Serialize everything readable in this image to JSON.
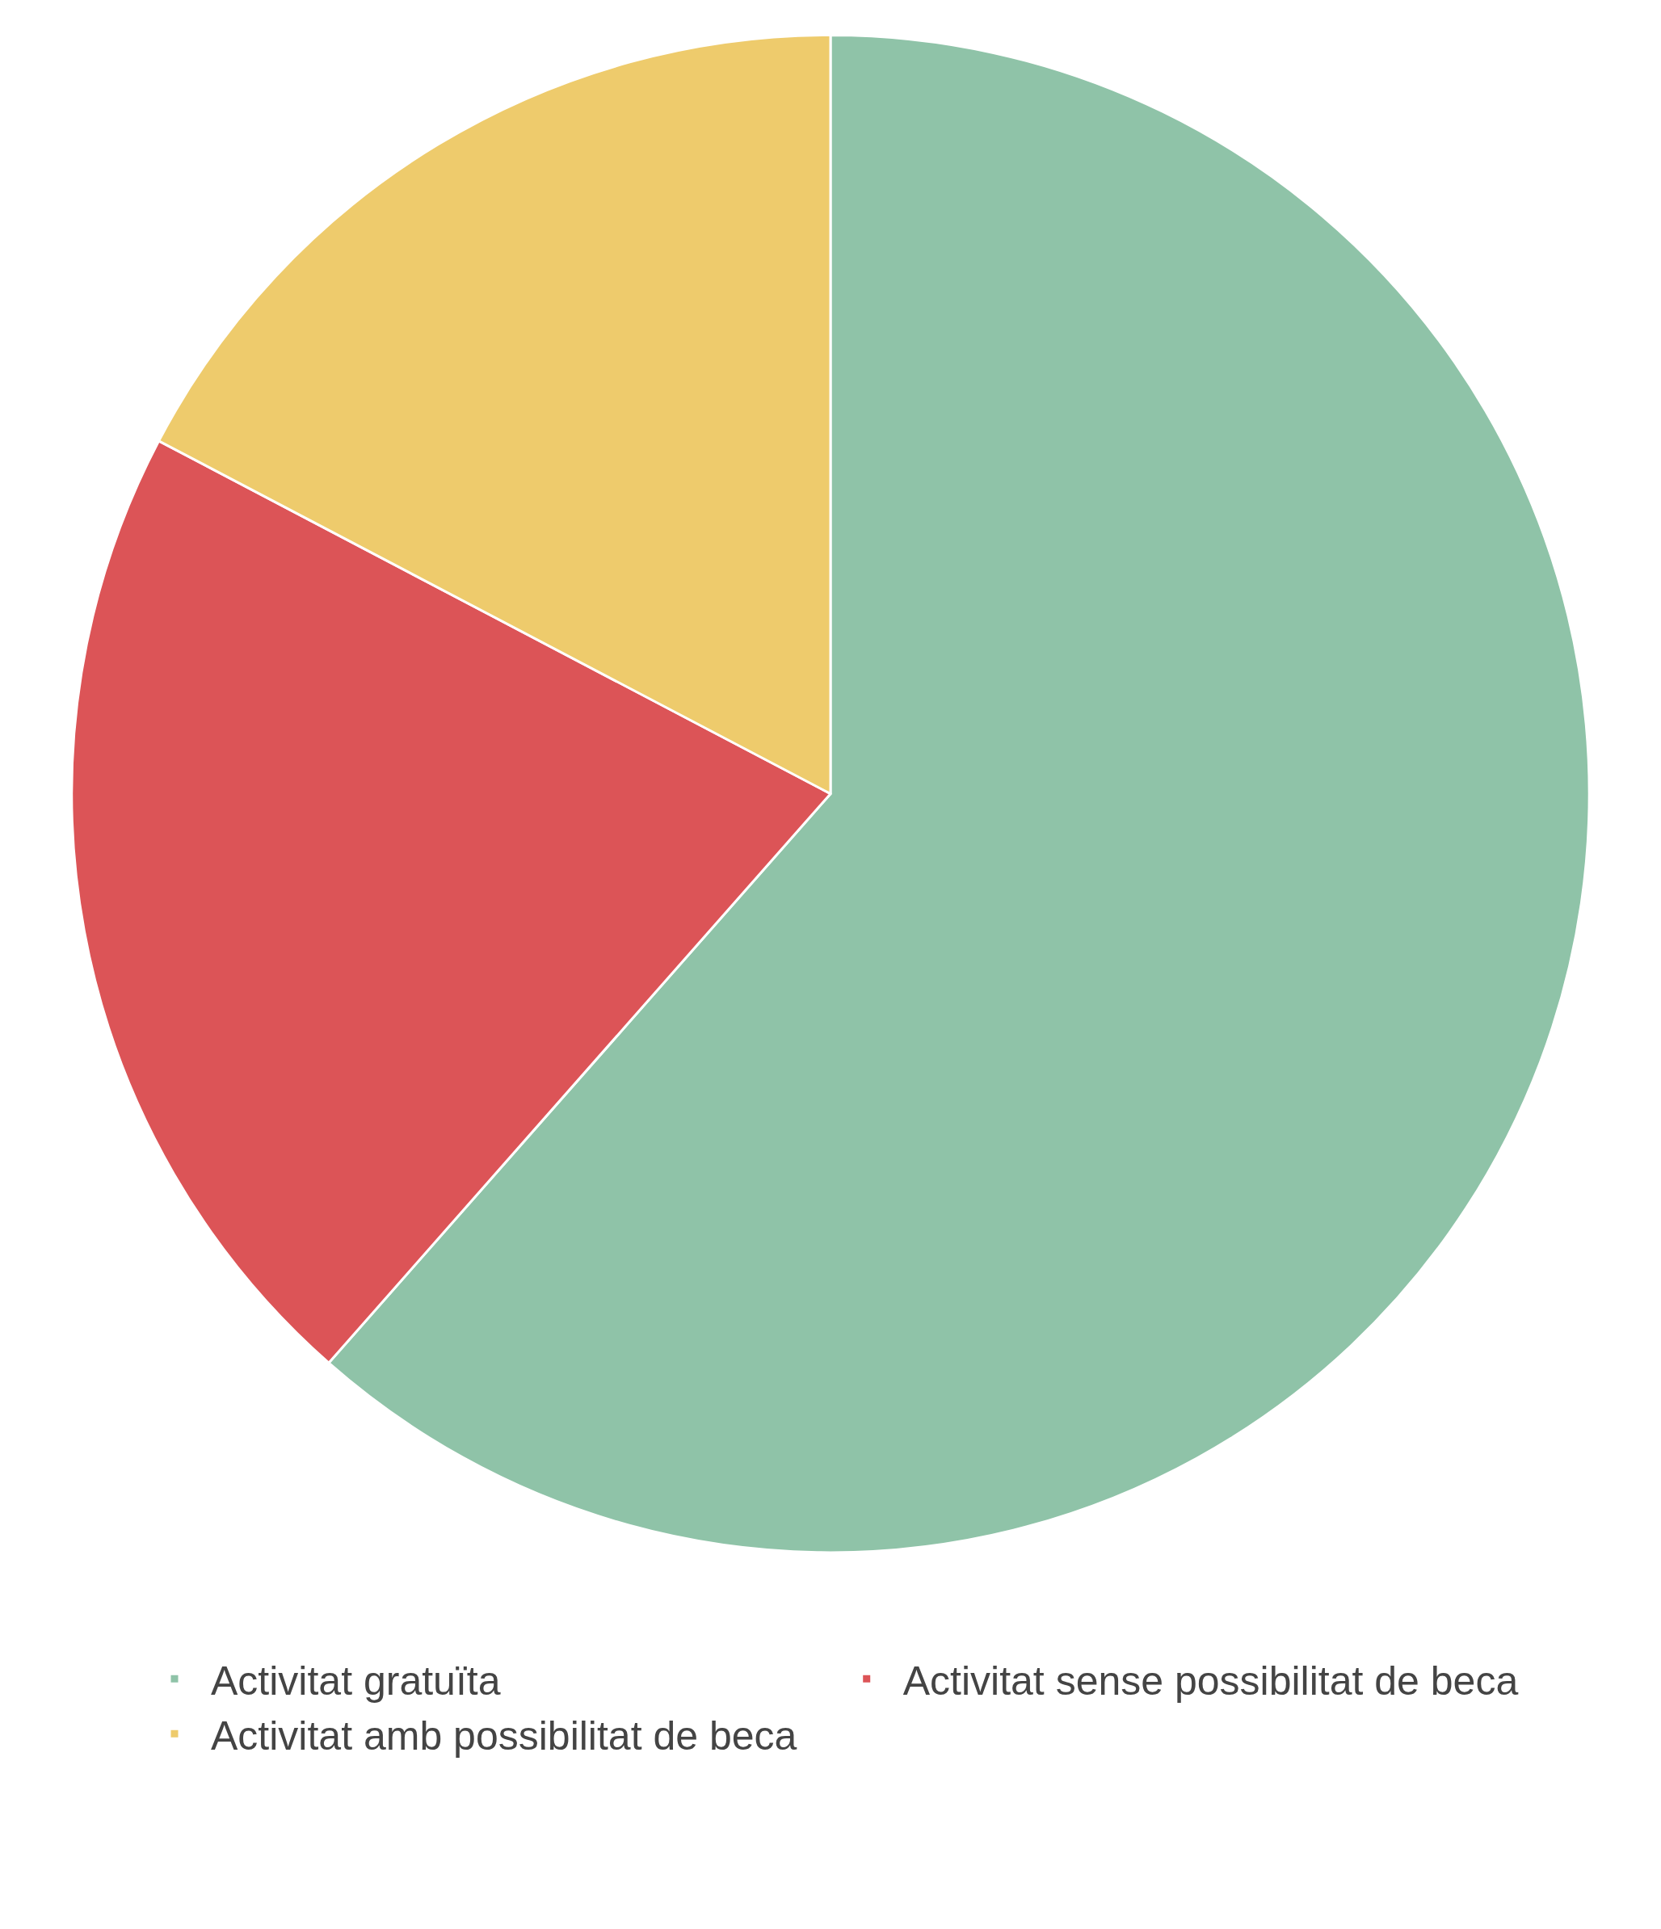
{
  "chart_data": {
    "type": "pie",
    "categories": [
      "Activitat gratuïta",
      "Activitat sense possibilitat de beca",
      "Activitat amb possibilitat de beca"
    ],
    "values": [
      61.5,
      21.2,
      17.3
    ],
    "colors": [
      "#8fc3a8",
      "#dc5457",
      "#eecb6c"
    ],
    "legend": "bottom"
  }
}
